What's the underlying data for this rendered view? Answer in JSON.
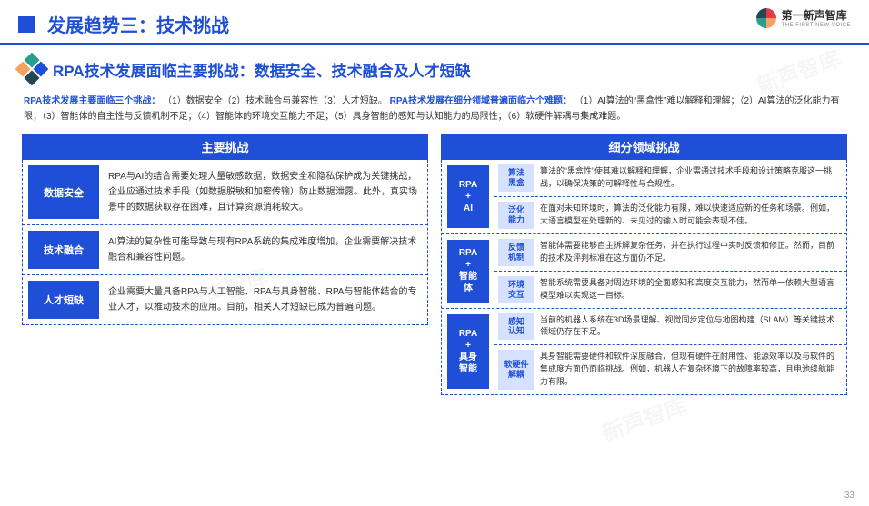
{
  "logo": {
    "main": "第一新声智库",
    "sub": "THE FIRST NEW VOICE"
  },
  "header": {
    "title": "发展趋势三：技术挑战"
  },
  "subtitle": "RPA技术发展面临主要挑战：数据安全、技术融合及人才短缺",
  "intro": {
    "lead1": "RPA技术发展主要面临三个挑战：",
    "body1": "（1）数据安全（2）技术融合与兼容性（3）人才短缺。",
    "lead2": "RPA技术发展在细分领域普遍面临六个难题：",
    "body2": "（1）AI算法的“黑盒性”难以解释和理解；（2）AI算法的泛化能力有限；（3）智能体的自主性与反馈机制不足；（4）智能体的环境交互能力不足；（5）具身智能的感知与认知能力的局限性；（6）软硬件解耦与集成难题。"
  },
  "left": {
    "title": "主要挑战",
    "rows": [
      {
        "label": "数据安全",
        "text": "RPA与AI的结合需要处理大量敏感数据，数据安全和隐私保护成为关键挑战，企业应通过技术手段（如数据脱敏和加密传输）防止数据泄露。此外，真实场景中的数据获取存在困难，且计算资源消耗较大。"
      },
      {
        "label": "技术融合",
        "text": "AI算法的复杂性可能导致与现有RPA系统的集成难度增加，企业需要解决技术融合和兼容性问题。"
      },
      {
        "label": "人才短缺",
        "text": "企业需要大量具备RPA与人工智能、RPA与具身智能、RPA与智能体结合的专业人才，以推动技术的应用。目前，相关人才短缺已成为普遍问题。"
      }
    ]
  },
  "right": {
    "title": "细分领域挑战",
    "groups": [
      {
        "vlabel": "RPA\n+\nAI",
        "items": [
          {
            "tag": "算法\n黑盒",
            "text": "算法的“黑盒性”使其难以解释和理解，企业需通过技术手段和设计策略克服这一挑战，以确保决策的可解释性与合规性。"
          },
          {
            "tag": "泛化\n能力",
            "text": "在面对未知环境时，算法的泛化能力有限，难以快速适应新的任务和场景。例如，大语言模型在处理新的、未见过的输入时可能会表现不佳。"
          }
        ]
      },
      {
        "vlabel": "RPA\n+\n智能\n体",
        "items": [
          {
            "tag": "反馈\n机制",
            "text": "智能体需要能够自主拆解复杂任务，并在执行过程中实时反馈和修正。然而，目前的技术及评判标准在这方面仍不足。"
          },
          {
            "tag": "环境\n交互",
            "text": "智能系统需要具备对周边环境的全面感知和高度交互能力，然而单一依赖大型语言模型难以实现这一目标。"
          }
        ]
      },
      {
        "vlabel": "RPA\n+\n具身\n智能",
        "items": [
          {
            "tag": "感知\n认知",
            "text": "当前的机器人系统在3D场景理解、视觉同步定位与地图构建（SLAM）等关键技术领域仍存在不足。"
          },
          {
            "tag": "软硬件\n解耦",
            "text": "具身智能需要硬件和软件深度融合，但现有硬件在耐用性、能源效率以及与软件的集成度方面仍面临挑战。例如，机器人在复杂环境下的故障率较高，且电池续航能力有限。"
          }
        ]
      }
    ]
  },
  "page": "33",
  "colors": {
    "primary": "#1e4fd6",
    "tag_bg": "#d6e0ff"
  }
}
